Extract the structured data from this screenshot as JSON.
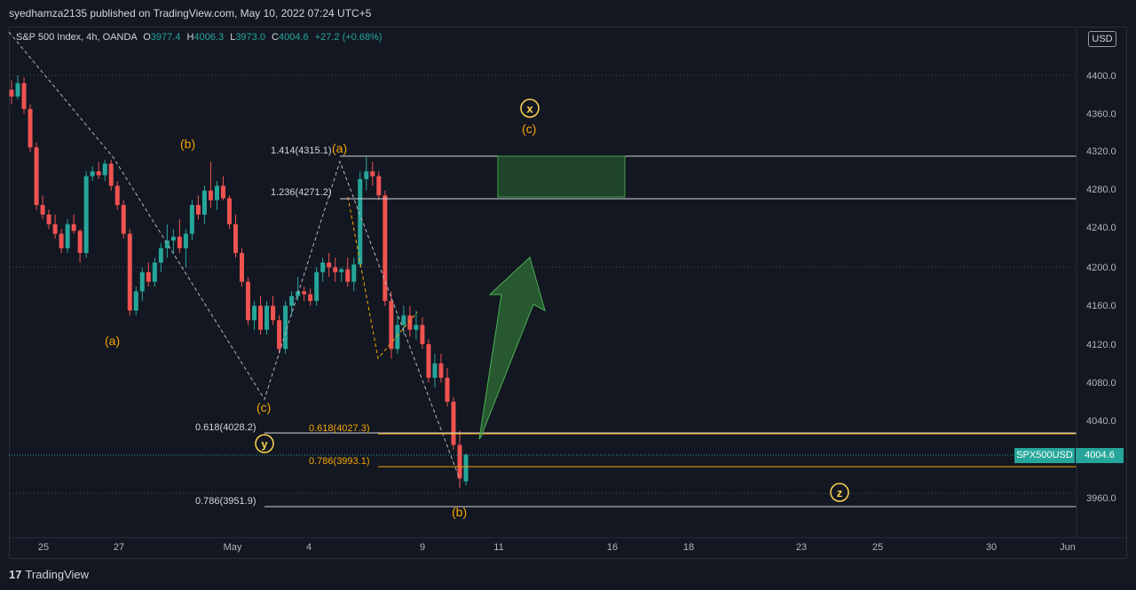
{
  "header": {
    "published": "syedhamza2135 published on TradingView.com, May 10, 2022 07:24 UTC+5"
  },
  "legend": {
    "symbol": "S&P 500 Index, 4h, OANDA",
    "o_label": "O",
    "o": "3977.4",
    "h_label": "H",
    "h": "4006.3",
    "l_label": "L",
    "l": "3973.0",
    "c_label": "C",
    "c": "4004.6",
    "change": "+27.2 (+0.68%)"
  },
  "currency": "USD",
  "price_axis": {
    "ticks": [
      "4400.0",
      "4360.0",
      "4320.0",
      "4280.0",
      "4240.0",
      "4200.0",
      "4160.0",
      "4120.0",
      "4080.0",
      "4040.0",
      "3960.0"
    ],
    "current_symbol": "SPX500USD",
    "current_price": "4004.6"
  },
  "time_axis": {
    "ticks": [
      "25",
      "27",
      "May",
      "4",
      "9",
      "11",
      "16",
      "18",
      "23",
      "25",
      "30",
      "Jun"
    ]
  },
  "annotations": {
    "fib_1414": "1.414(4315.1)",
    "fib_1236": "1.236(4271.2)",
    "fib_0618_left": "0.618(4028.2)",
    "fib_0618_right": "0.618(4027.3)",
    "fib_0786_right": "0.786(3993.1)",
    "fib_0786_left": "0.786(3951.9)",
    "wave_a_left": "(a)",
    "wave_b_left": "(b)",
    "wave_c_left": "(c)",
    "wave_a_top": "(a)",
    "wave_b_bottom": "(b)",
    "wave_c_top": "(c)",
    "circle_x": "x",
    "circle_y": "y",
    "circle_z": "z"
  },
  "footer": {
    "logo": "17",
    "brand": "TradingView"
  },
  "chart_data": {
    "type": "candlestick",
    "price_range": [
      3935,
      4430
    ],
    "colors": {
      "up": "#26a69a",
      "down": "#ef5350",
      "fib_white": "#d1d4dc",
      "fib_orange": "#f7a600",
      "target_zone": "#2e7d32",
      "arrow": "#388e3c",
      "wave_label": "#f7a600",
      "circle": "#ffd54f"
    },
    "candles": [
      [
        4385,
        4395,
        4370,
        4378
      ],
      [
        4378,
        4400,
        4375,
        4392
      ],
      [
        4392,
        4398,
        4360,
        4365
      ],
      [
        4365,
        4370,
        4320,
        4325
      ],
      [
        4325,
        4330,
        4260,
        4265
      ],
      [
        4265,
        4275,
        4250,
        4255
      ],
      [
        4255,
        4260,
        4240,
        4245
      ],
      [
        4245,
        4255,
        4230,
        4235
      ],
      [
        4235,
        4240,
        4215,
        4220
      ],
      [
        4220,
        4250,
        4215,
        4245
      ],
      [
        4245,
        4255,
        4235,
        4238
      ],
      [
        4238,
        4240,
        4205,
        4215
      ],
      [
        4215,
        4300,
        4210,
        4295
      ],
      [
        4295,
        4305,
        4290,
        4300
      ],
      [
        4300,
        4310,
        4292,
        4296
      ],
      [
        4296,
        4312,
        4290,
        4308
      ],
      [
        4308,
        4312,
        4280,
        4285
      ],
      [
        4285,
        4290,
        4260,
        4265
      ],
      [
        4265,
        4270,
        4230,
        4235
      ],
      [
        4235,
        4240,
        4150,
        4155
      ],
      [
        4155,
        4180,
        4150,
        4175
      ],
      [
        4175,
        4200,
        4165,
        4195
      ],
      [
        4195,
        4205,
        4180,
        4185
      ],
      [
        4185,
        4210,
        4180,
        4205
      ],
      [
        4205,
        4225,
        4195,
        4220
      ],
      [
        4220,
        4245,
        4210,
        4228
      ],
      [
        4228,
        4240,
        4215,
        4232
      ],
      [
        4232,
        4250,
        4215,
        4220
      ],
      [
        4220,
        4240,
        4200,
        4235
      ],
      [
        4235,
        4270,
        4228,
        4265
      ],
      [
        4265,
        4275,
        4250,
        4255
      ],
      [
        4255,
        4285,
        4245,
        4280
      ],
      [
        4280,
        4310,
        4262,
        4270
      ],
      [
        4270,
        4290,
        4260,
        4285
      ],
      [
        4285,
        4295,
        4270,
        4272
      ],
      [
        4272,
        4275,
        4240,
        4245
      ],
      [
        4245,
        4255,
        4210,
        4215
      ],
      [
        4215,
        4220,
        4180,
        4185
      ],
      [
        4185,
        4190,
        4140,
        4145
      ],
      [
        4145,
        4165,
        4135,
        4160
      ],
      [
        4160,
        4170,
        4130,
        4135
      ],
      [
        4135,
        4165,
        4130,
        4160
      ],
      [
        4160,
        4170,
        4140,
        4145
      ],
      [
        4145,
        4150,
        4110,
        4115
      ],
      [
        4115,
        4165,
        4110,
        4160
      ],
      [
        4160,
        4175,
        4150,
        4170
      ],
      [
        4170,
        4190,
        4165,
        4175
      ],
      [
        4175,
        4180,
        4165,
        4172
      ],
      [
        4172,
        4178,
        4160,
        4165
      ],
      [
        4165,
        4200,
        4160,
        4195
      ],
      [
        4195,
        4210,
        4185,
        4205
      ],
      [
        4205,
        4215,
        4190,
        4200
      ],
      [
        4200,
        4210,
        4185,
        4195
      ],
      [
        4195,
        4200,
        4185,
        4198
      ],
      [
        4198,
        4210,
        4180,
        4185
      ],
      [
        4185,
        4210,
        4175,
        4203
      ],
      [
        4203,
        4300,
        4200,
        4292
      ],
      [
        4292,
        4315,
        4280,
        4300
      ],
      [
        4300,
        4310,
        4285,
        4295
      ],
      [
        4295,
        4300,
        4270,
        4275
      ],
      [
        4275,
        4280,
        4160,
        4165
      ],
      [
        4165,
        4175,
        4105,
        4115
      ],
      [
        4115,
        4150,
        4110,
        4140
      ],
      [
        4140,
        4160,
        4130,
        4150
      ],
      [
        4150,
        4160,
        4128,
        4135
      ],
      [
        4135,
        4155,
        4125,
        4140
      ],
      [
        4140,
        4148,
        4115,
        4120
      ],
      [
        4120,
        4125,
        4080,
        4085
      ],
      [
        4085,
        4110,
        4075,
        4100
      ],
      [
        4100,
        4110,
        4080,
        4085
      ],
      [
        4085,
        4095,
        4055,
        4060
      ],
      [
        4060,
        4065,
        4010,
        4015
      ],
      [
        4015,
        4030,
        3970,
        3980
      ],
      [
        3977,
        4006,
        3973,
        4005
      ]
    ]
  }
}
